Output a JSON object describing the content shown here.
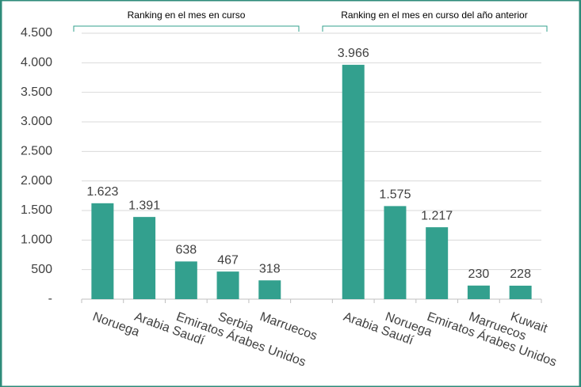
{
  "chart_data": {
    "type": "bar",
    "annotations": [
      "Ranking en el mes en curso",
      "Ranking en el mes en curso del año anterior"
    ],
    "categories": [
      "Noruega",
      "Arabia Saudí",
      "Emiratos Árabes Unidos",
      "Serbia",
      "Marruecos",
      null,
      "Arabia Saudí",
      "Noruega",
      "Emiratos Árabes Unidos",
      "Marruecos",
      "Kuwait"
    ],
    "values": [
      1623,
      1391,
      638,
      467,
      318,
      null,
      3966,
      1575,
      1217,
      230,
      228
    ],
    "value_labels": [
      "1.623",
      "1.391",
      "638",
      "467",
      "318",
      null,
      "3.966",
      "1.575",
      "1.217",
      "230",
      "228"
    ],
    "color": "#33a08e",
    "ylim": [
      0,
      4500
    ],
    "yticks": [
      {
        "value": 0,
        "label": "-"
      },
      500,
      {
        "value": 1000,
        "label": "1.000"
      },
      {
        "value": 1500,
        "label": "1.500"
      },
      {
        "value": 2000,
        "label": "2.000"
      },
      {
        "value": 2500,
        "label": "2.500"
      },
      {
        "value": 3000,
        "label": "3.000"
      },
      {
        "value": 3500,
        "label": "3.500"
      },
      {
        "value": 4000,
        "label": "4.000"
      },
      {
        "value": 4500,
        "label": "4.500"
      }
    ],
    "grid": true
  }
}
